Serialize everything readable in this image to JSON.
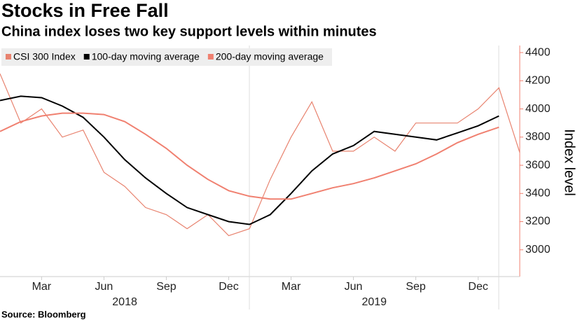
{
  "chart_data": {
    "type": "line",
    "title": "Stocks in Free Fall",
    "subtitle": "China index loses two key support levels within minutes",
    "y_label": "Index level",
    "source": "Source: Bloomberg",
    "x": [
      "2018-01",
      "2018-02",
      "2018-03",
      "2018-04",
      "2018-05",
      "2018-06",
      "2018-07",
      "2018-08",
      "2018-09",
      "2018-10",
      "2018-11",
      "2018-12",
      "2019-01",
      "2019-02",
      "2019-03",
      "2019-04",
      "2019-05",
      "2019-06",
      "2019-07",
      "2019-08",
      "2019-09",
      "2019-10",
      "2019-11",
      "2019-12",
      "2020-01",
      "2020-02"
    ],
    "series": [
      {
        "name": "CSI 300 Index",
        "color": "#e8836f",
        "values": [
          4250,
          3900,
          4000,
          3800,
          3850,
          3550,
          3450,
          3300,
          3250,
          3150,
          3250,
          3100,
          3150,
          3500,
          3800,
          4050,
          3700,
          3700,
          3800,
          3700,
          3900,
          3900,
          3900,
          4000,
          4150,
          3690
        ]
      },
      {
        "name": "100-day moving average",
        "color": "#000000",
        "values": [
          4060,
          4090,
          4080,
          4020,
          3940,
          3800,
          3640,
          3510,
          3400,
          3300,
          3250,
          3200,
          3180,
          3250,
          3400,
          3560,
          3680,
          3740,
          3840,
          3820,
          3800,
          3780,
          3830,
          3880,
          3950,
          null
        ]
      },
      {
        "name": "200-day moving average",
        "color": "#f08070",
        "values": [
          3840,
          3910,
          3950,
          3970,
          3970,
          3960,
          3910,
          3820,
          3720,
          3600,
          3500,
          3420,
          3380,
          3360,
          3360,
          3400,
          3440,
          3470,
          3510,
          3560,
          3610,
          3680,
          3760,
          3820,
          3870,
          null
        ]
      }
    ],
    "xlim": [
      "2018-01",
      "2020-02"
    ],
    "xticks": [
      {
        "value": "2018-03",
        "label": "Mar"
      },
      {
        "value": "2018-06",
        "label": "Jun"
      },
      {
        "value": "2018-09",
        "label": "Sep"
      },
      {
        "value": "2018-12",
        "label": "Dec"
      },
      {
        "value": "2019-03",
        "label": "Mar"
      },
      {
        "value": "2019-06",
        "label": "Jun"
      },
      {
        "value": "2019-09",
        "label": "Sep"
      },
      {
        "value": "2019-12",
        "label": "Dec"
      }
    ],
    "x_group_labels": [
      {
        "value": "2018-07",
        "label": "2018"
      },
      {
        "value": "2019-07",
        "label": "2019"
      }
    ],
    "ylim": [
      2810,
      4450
    ],
    "yticks": [
      3000,
      3200,
      3400,
      3600,
      3800,
      4000,
      4200,
      4400
    ],
    "y_axis_side": "right",
    "legend": "top-left",
    "grid": false
  }
}
